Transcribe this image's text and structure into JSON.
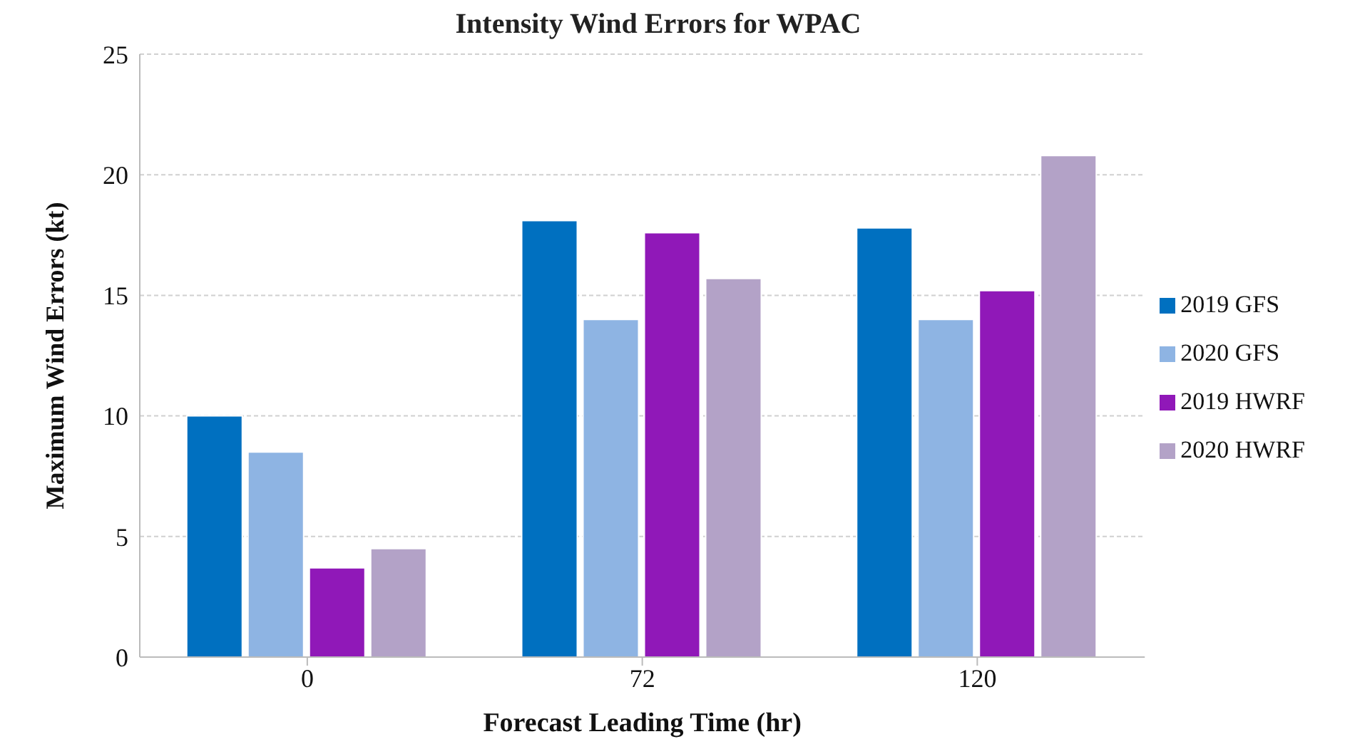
{
  "chart_data": {
    "type": "bar",
    "title": "Intensity Wind Errors for WPAC",
    "xlabel": "Forecast Leading Time (hr)",
    "ylabel": "Maximum Wind Errors (kt)",
    "categories": [
      "0",
      "72",
      "120"
    ],
    "series": [
      {
        "name": "2019 GFS",
        "color": "#0070c0",
        "values": [
          10,
          18.1,
          17.8
        ]
      },
      {
        "name": "2020 GFS",
        "color": "#8eb4e3",
        "values": [
          8.5,
          14,
          14
        ]
      },
      {
        "name": "2019 HWRF",
        "color": "#9018b8",
        "values": [
          3.7,
          17.6,
          15.2
        ]
      },
      {
        "name": "2020 HWRF",
        "color": "#b3a2c7",
        "values": [
          4.5,
          15.7,
          20.8
        ]
      }
    ],
    "ylim": [
      0,
      25
    ],
    "yticks": [
      0,
      5,
      10,
      15,
      20,
      25
    ],
    "grid": "y",
    "legend": "right"
  }
}
